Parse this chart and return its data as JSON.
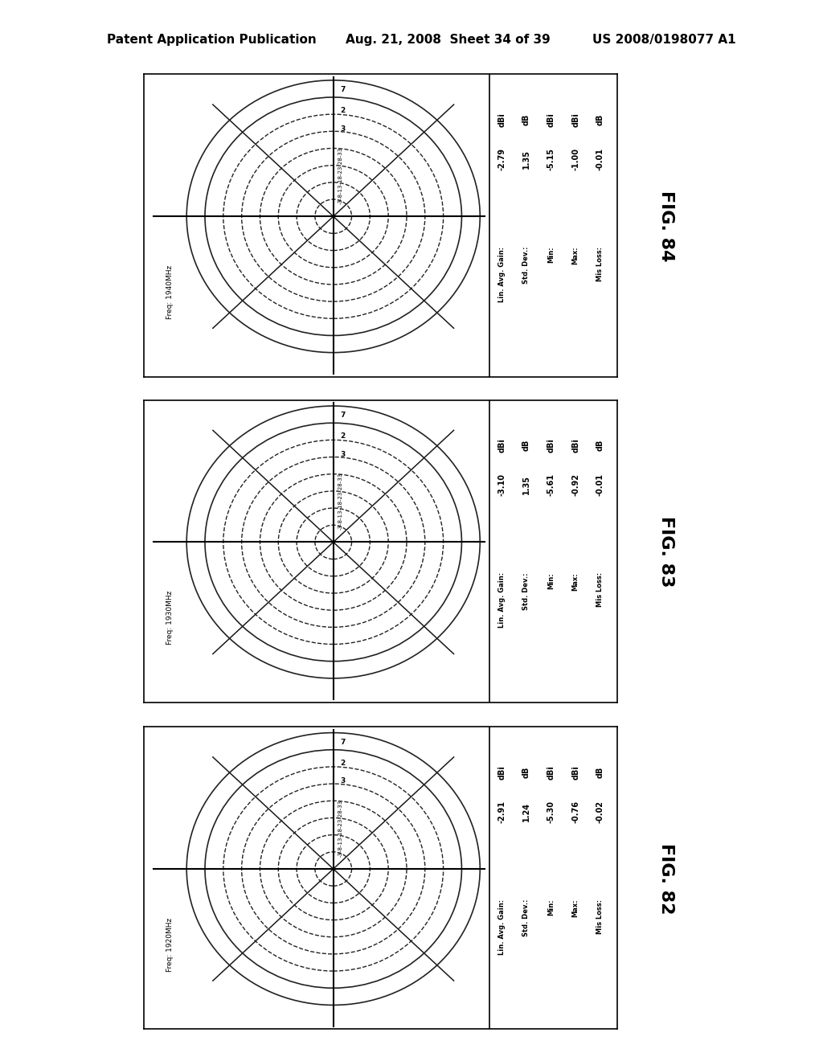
{
  "figures": [
    {
      "fig_label": "FIG. 84",
      "freq": "Freq: 1940MHz",
      "lin_avg_gain": "-2.79",
      "std_dev": "1.35",
      "min_val": "-5.15",
      "max_val": "-1.00",
      "mis_loss": "-0.01",
      "units": [
        "dBi",
        "dB",
        "dBi",
        "dBi",
        "dB"
      ]
    },
    {
      "fig_label": "FIG. 83",
      "freq": "Freq: 1930MHz",
      "lin_avg_gain": "-3.10",
      "std_dev": "1.35",
      "min_val": "-5.61",
      "max_val": "-0.92",
      "mis_loss": "-0.01",
      "units": [
        "dBi",
        "dB",
        "dBi",
        "dBi",
        "dB"
      ]
    },
    {
      "fig_label": "FIG. 82",
      "freq": "Freq: 1920MHz",
      "lin_avg_gain": "-2.91",
      "std_dev": "1.24",
      "min_val": "-5.30",
      "max_val": "-0.76",
      "mis_loss": "-0.02",
      "units": [
        "dBi",
        "dB",
        "dBi",
        "dBi",
        "dB"
      ]
    }
  ],
  "header_left": "Patent Application Publication",
  "header_center": "Aug. 21, 2008  Sheet 34 of 39",
  "header_right": "US 2008/0198077 A1",
  "background_color": "#ffffff",
  "ring_labels_top": [
    "7",
    "2",
    "3"
  ],
  "ring_labels_radial": "-3-8-13-18-23-28-33",
  "bottom_labels": [
    "Lin. Avg. Gain:",
    "Std. Dev.:",
    "Min:",
    "Max:",
    "Mis Loss:"
  ]
}
